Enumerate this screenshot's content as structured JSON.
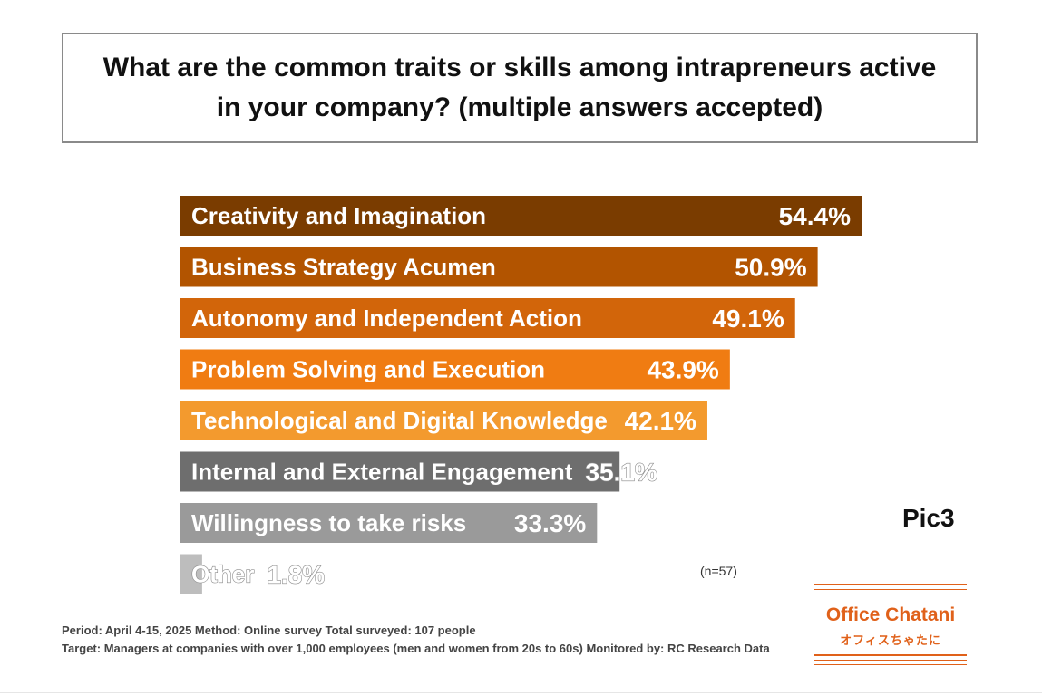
{
  "title": "What are the common traits or skills among intrapreneurs active in your company? (multiple answers accepted)",
  "chart_data": {
    "type": "bar",
    "orientation": "horizontal",
    "categories": [
      "Creativity and Imagination",
      "Business Strategy Acumen",
      "Autonomy and Independent Action",
      "Problem Solving and Execution",
      "Technological and Digital Knowledge",
      "Internal and External Engagement",
      "Willingness to take risks",
      "Other"
    ],
    "values": [
      54.4,
      50.9,
      49.1,
      43.9,
      42.1,
      35.1,
      33.3,
      1.8
    ],
    "value_labels": [
      "54.4%",
      "50.9%",
      "49.1%",
      "43.9%",
      "42.1%",
      "35.1%",
      "33.3%",
      "1.8%"
    ],
    "colors": [
      "#7a3c00",
      "#b25400",
      "#d2650a",
      "#f07c12",
      "#f39a2e",
      "#6e6e6e",
      "#9a9a9a",
      "#bdbdbd"
    ],
    "xlim": [
      0,
      54.4
    ],
    "grid": false,
    "legend": "none"
  },
  "sample_note": "(n=57)",
  "pic_label": "Pic3",
  "footnote": {
    "line1": "Period: April 4-15, 2025 Method: Online survey Total surveyed: 107 people",
    "line2": "Target: Managers at companies with over 1,000 employees (men and women from 20s to 60s) Monitored by: RC Research Data"
  },
  "logo": {
    "name": "Office Chatani",
    "sub": "オフィスちゃたに",
    "color": "#e0611a"
  }
}
